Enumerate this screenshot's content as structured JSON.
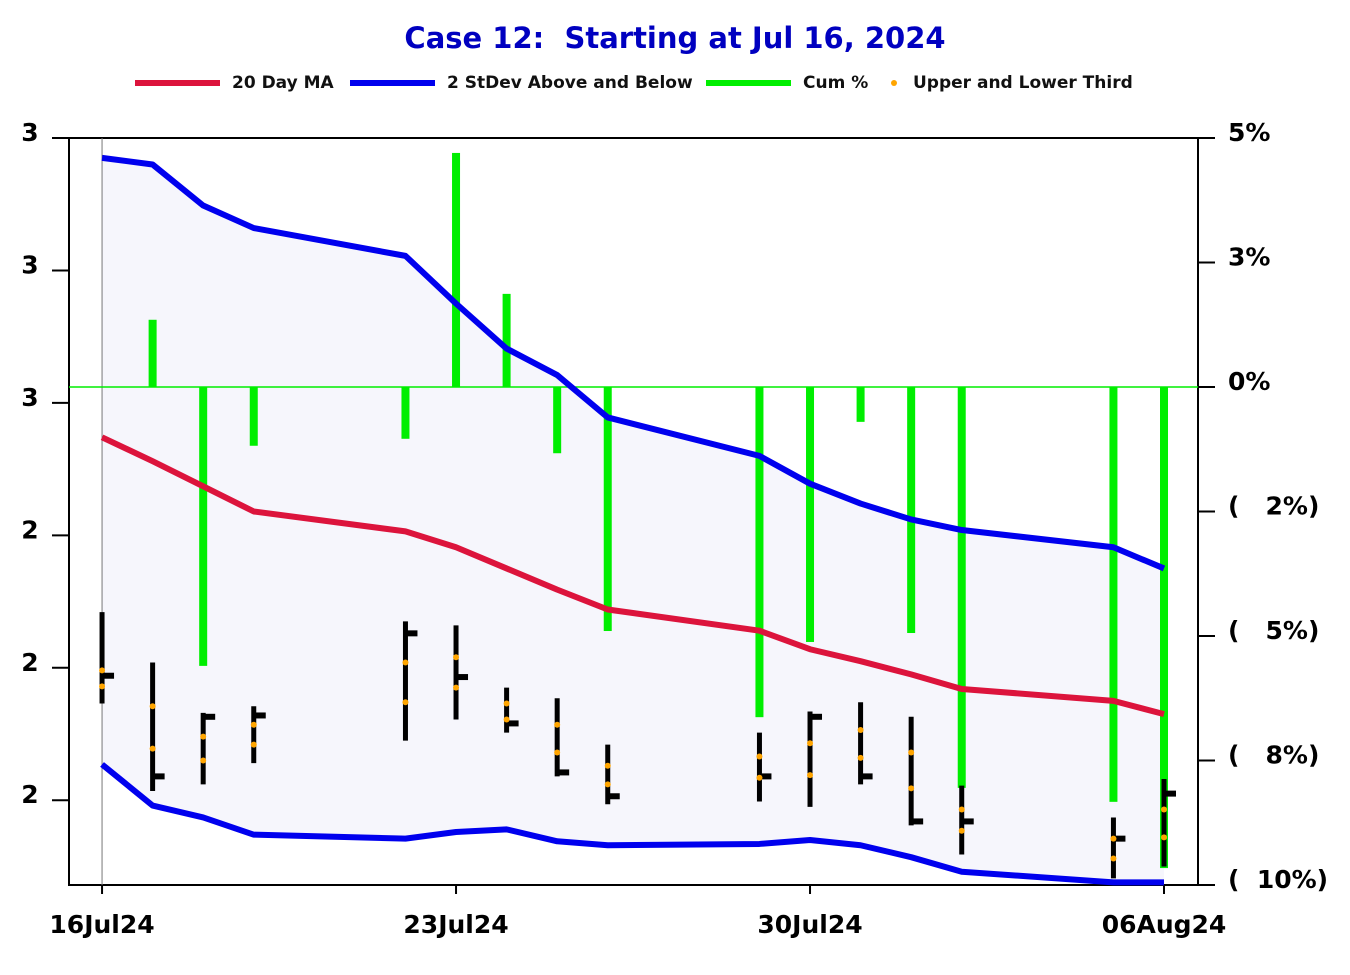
{
  "chart_data": {
    "type": "band-ohlc",
    "title": "Case 12:  Starting at Jul 16, 2024",
    "x": [
      "2024-07-16",
      "2024-07-17",
      "2024-07-18",
      "2024-07-19",
      "2024-07-22",
      "2024-07-23",
      "2024-07-24",
      "2024-07-25",
      "2024-07-26",
      "2024-07-29",
      "2024-07-30",
      "2024-07-31",
      "2024-08-01",
      "2024-08-02",
      "2024-08-05",
      "2024-08-06"
    ],
    "xlim": [
      "2024-07-15T08:19:00Z",
      "2024-08-06T16:08:00Z"
    ],
    "xticks": [
      {
        "value": "2024-07-16",
        "label": "16Jul24"
      },
      {
        "value": "2024-07-23",
        "label": "23Jul24"
      },
      {
        "value": "2024-07-30",
        "label": "30Jul24"
      },
      {
        "value": "2024-08-06",
        "label": "06Aug24"
      }
    ],
    "ylim": [
      2.186,
      2.75
    ],
    "yticks": [
      {
        "value": 2.75,
        "label": "3"
      },
      {
        "value": 2.65,
        "label": "3"
      },
      {
        "value": 2.55,
        "label": "3"
      },
      {
        "value": 2.45,
        "label": "2"
      },
      {
        "value": 2.35,
        "label": "2"
      },
      {
        "value": 2.25,
        "label": "2"
      }
    ],
    "y2lim": [
      -10,
      5
    ],
    "y2ticks": [
      {
        "value": 5,
        "label": "5%"
      },
      {
        "value": 2.5,
        "label": "3%"
      },
      {
        "value": 0,
        "label": "0%"
      },
      {
        "value": -2.5,
        "label": "(   2%)"
      },
      {
        "value": -5,
        "label": "(   5%)"
      },
      {
        "value": -7.5,
        "label": "(   8%)"
      },
      {
        "value": -10,
        "label": "(  10%)"
      }
    ],
    "series": [
      {
        "name": "20 Day MA",
        "color": "#dc143c",
        "values": [
          2.524,
          2.506,
          2.487,
          2.468,
          2.453,
          2.441,
          2.425,
          2.409,
          2.394,
          2.378,
          2.364,
          2.355,
          2.345,
          2.334,
          2.325,
          2.315
        ]
      },
      {
        "name": "2 StDev Above and Below",
        "color": "#0000ee",
        "values": [
          2.735,
          2.73,
          2.699,
          2.682,
          2.661,
          2.625,
          2.591,
          2.571,
          2.539,
          2.51,
          2.489,
          2.474,
          2.462,
          2.454,
          2.441,
          2.425
        ],
        "lower_values": [
          2.277,
          2.246,
          2.237,
          2.224,
          2.221,
          2.226,
          2.228,
          2.219,
          2.216,
          2.217,
          2.22,
          2.216,
          2.207,
          2.196,
          2.188,
          2.188
        ]
      },
      {
        "name": "Cum %",
        "color": "#00ee00",
        "axis": "y2",
        "values": [
          0,
          1.35,
          -5.6,
          -1.18,
          -1.04,
          4.7,
          1.87,
          -1.33,
          -4.9,
          -6.63,
          -5.12,
          -0.7,
          -4.94,
          -8.05,
          -8.33,
          -9.66
        ]
      },
      {
        "name": "Upper and Lower Third",
        "color": "#ffa500",
        "values": [
          2.348,
          2.321,
          2.298,
          2.307,
          2.354,
          2.358,
          2.323,
          2.307,
          2.276,
          2.283,
          2.293,
          2.303,
          2.286,
          2.243,
          2.221,
          2.243
        ],
        "lower_values": [
          2.336,
          2.289,
          2.28,
          2.292,
          2.324,
          2.335,
          2.311,
          2.286,
          2.262,
          2.267,
          2.269,
          2.282,
          2.259,
          2.227,
          2.206,
          2.222
        ]
      }
    ],
    "price_bars": {
      "color": "#000000",
      "high": [
        2.392,
        2.354,
        2.316,
        2.321,
        2.385,
        2.382,
        2.335,
        2.327,
        2.292,
        2.301,
        2.317,
        2.324,
        2.313,
        2.261,
        2.237,
        2.266
      ],
      "low": [
        2.323,
        2.257,
        2.262,
        2.278,
        2.295,
        2.311,
        2.301,
        2.268,
        2.247,
        2.249,
        2.245,
        2.262,
        2.231,
        2.209,
        2.191,
        2.2
      ],
      "close": [
        2.344,
        2.268,
        2.313,
        2.314,
        2.376,
        2.343,
        2.308,
        2.271,
        2.253,
        2.268,
        2.313,
        2.268,
        2.234,
        2.234,
        2.221,
        2.255
      ]
    }
  }
}
